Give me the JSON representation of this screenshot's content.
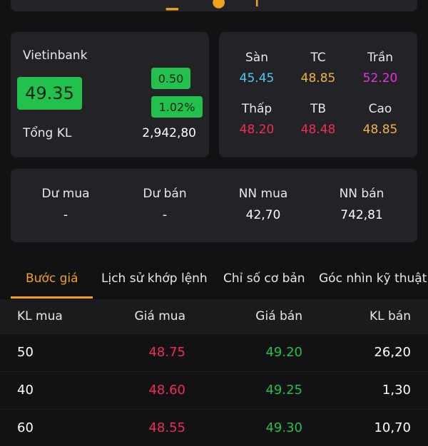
{
  "colors": {
    "background": "#121214",
    "card": "#232327",
    "up_green": "#22c14e",
    "down_red": "#ef2d55",
    "ref_yellow": "#f0b43c",
    "floor_cyan": "#4cc8f0",
    "ceiling_magenta": "#e532e0",
    "accent_orange": "#f0a21a"
  },
  "quote": {
    "name": "Vietinbank",
    "price": "49.35",
    "change": "0.50",
    "change_pct": "1.02%",
    "volume_label": "Tổng KL",
    "volume_value": "2,942,80"
  },
  "ranges": {
    "floor_label": "Sàn",
    "floor_value": "45.45",
    "ref_label": "TC",
    "ref_value": "48.85",
    "ceiling_label": "Trần",
    "ceiling_value": "52.20",
    "low_label": "Thấp",
    "low_value": "48.20",
    "avg_label": "TB",
    "avg_value": "48.48",
    "high_label": "Cao",
    "high_value": "48.85"
  },
  "foreign": {
    "bid_surplus_label": "Dư mua",
    "bid_surplus_value": "-",
    "ask_surplus_label": "Dư bán",
    "ask_surplus_value": "-",
    "nn_buy_label": "NN mua",
    "nn_buy_value": "42,70",
    "nn_sell_label": "NN bán",
    "nn_sell_value": "742,81"
  },
  "tabs": [
    {
      "label": "Bước giá"
    },
    {
      "label": "Lịch sử khớp lệnh"
    },
    {
      "label": "Chỉ số cơ bản"
    },
    {
      "label": "Góc nhìn kỹ thuật"
    }
  ],
  "order_book": {
    "headers": {
      "bid_vol": "KL mua",
      "bid_price": "Giá mua",
      "ask_price": "Giá bán",
      "ask_vol": "KL bán"
    },
    "rows": [
      {
        "bid_vol": "50",
        "bid_price": "48.75",
        "ask_price": "49.20",
        "ask_vol": "26,20"
      },
      {
        "bid_vol": "40",
        "bid_price": "48.60",
        "ask_price": "49.25",
        "ask_vol": "1,30"
      },
      {
        "bid_vol": "60",
        "bid_price": "48.55",
        "ask_price": "49.30",
        "ask_vol": "10,70"
      }
    ]
  }
}
